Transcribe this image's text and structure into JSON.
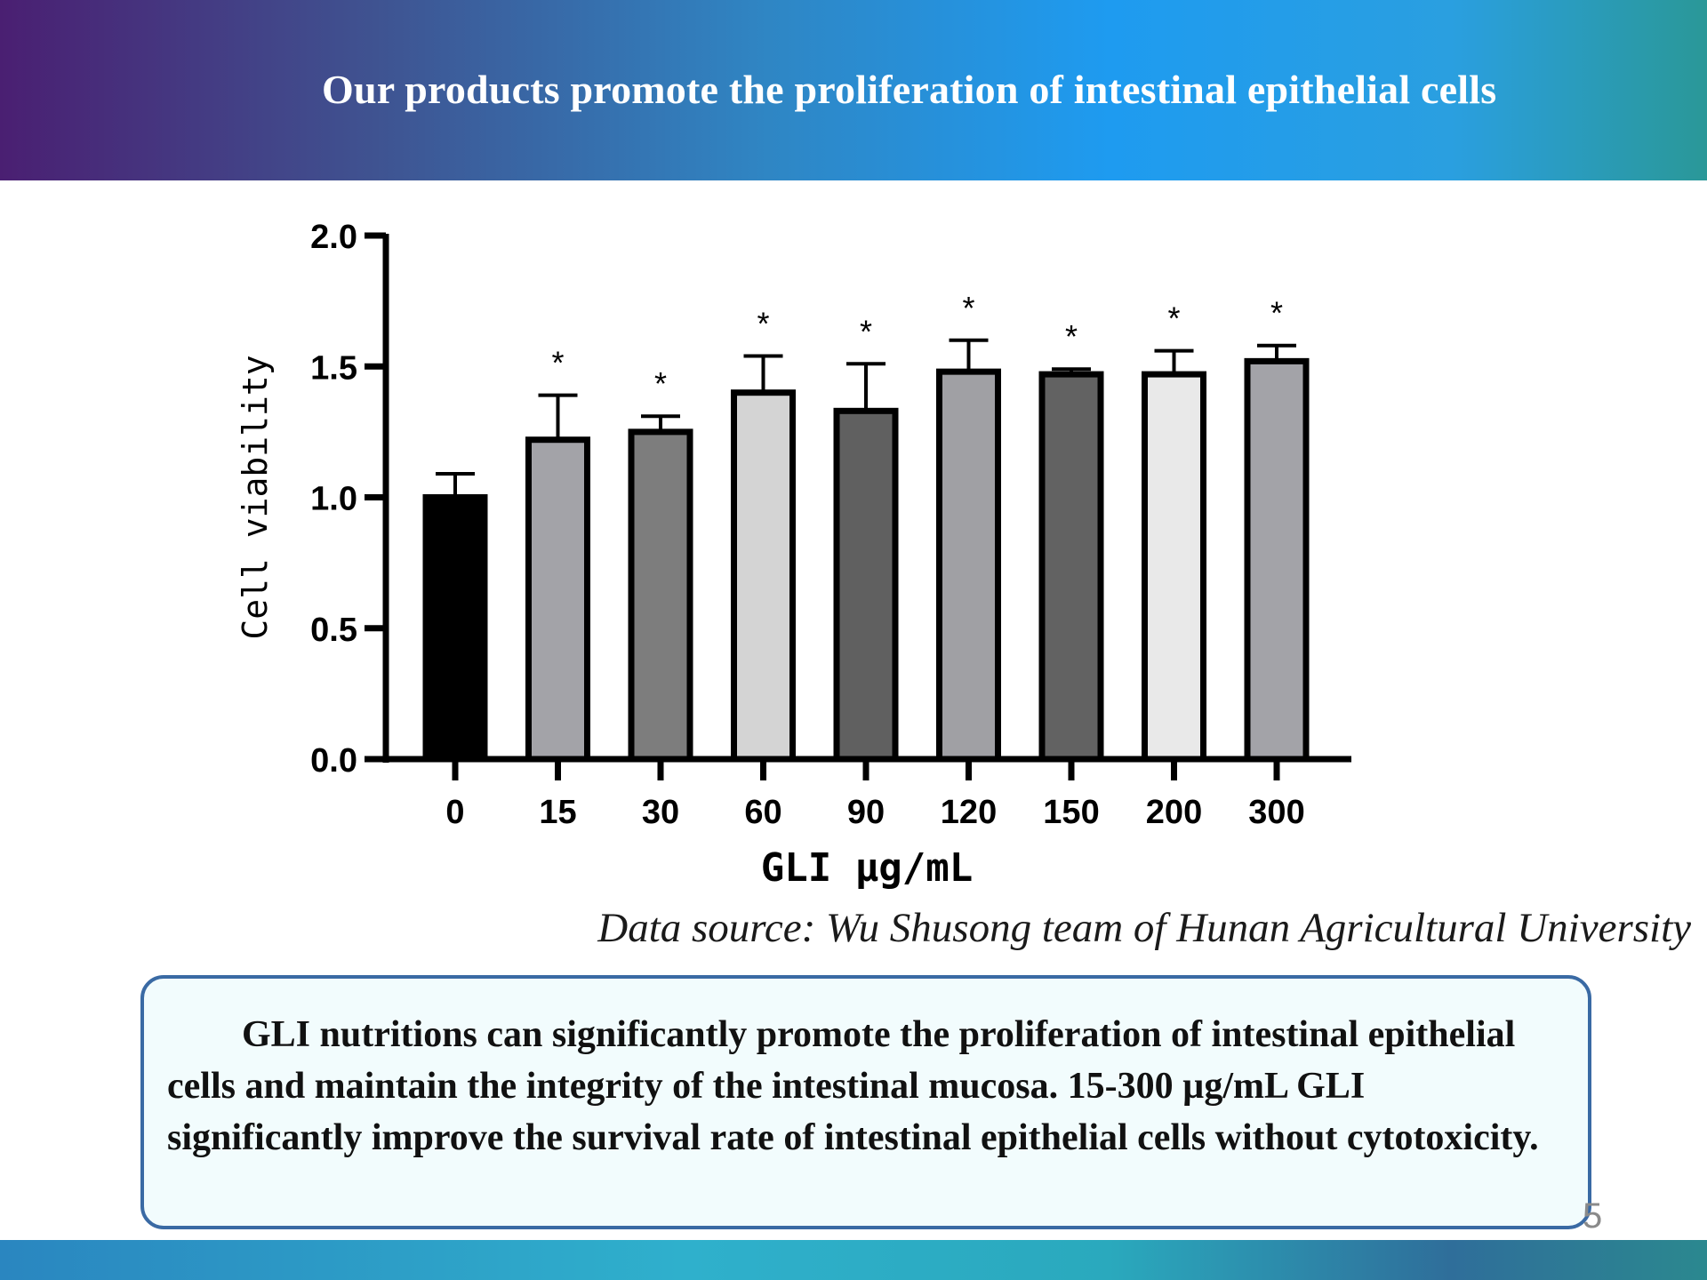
{
  "slide": {
    "title": "Our products promote the proliferation of intestinal epithelial cells",
    "source_note": "Data source: Wu Shusong team of Hunan Agricultural University",
    "summary": "GLI nutritions can significantly promote the proliferation of intestinal epithelial cells and maintain the integrity of the intestinal mucosa.  15-300 µg/mL  GLI significantly improve the survival rate of intestinal epithelial cells without cytotoxicity.",
    "page_number": "5"
  },
  "chart_data": {
    "type": "bar",
    "title": "",
    "xlabel": "GLI  µg/mL",
    "ylabel": "Cell viability",
    "ylim": [
      0,
      2.0
    ],
    "yticks": [
      "0.0",
      "0.5",
      "1.0",
      "1.5",
      "2.0"
    ],
    "categories": [
      "0",
      "15",
      "30",
      "60",
      "90",
      "120",
      "150",
      "200",
      "300"
    ],
    "values": [
      1.0,
      1.22,
      1.25,
      1.4,
      1.33,
      1.48,
      1.47,
      1.47,
      1.52
    ],
    "error": [
      0.09,
      0.17,
      0.06,
      0.14,
      0.18,
      0.12,
      0.02,
      0.09,
      0.06
    ],
    "significance": [
      "",
      "*",
      "*",
      "*",
      "*",
      "*",
      "*",
      "*",
      "*"
    ],
    "bar_colors": [
      "#000000",
      "#a3a3a8",
      "#7d7d7d",
      "#d4d4d4",
      "#606060",
      "#a0a0a4",
      "#626262",
      "#e9e9e9",
      "#a3a3a8"
    ],
    "grid": false,
    "legend": "none"
  }
}
